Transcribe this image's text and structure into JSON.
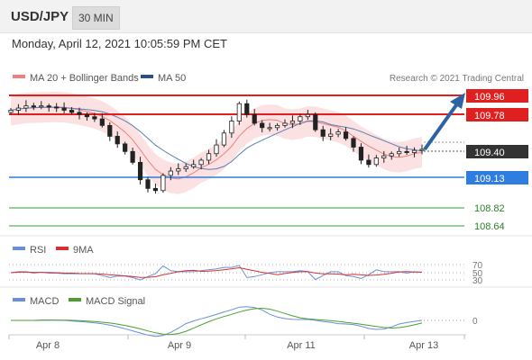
{
  "header": {
    "pair": "USD/JPY",
    "timeframe": "30 MIN"
  },
  "datetime": "Monday, April 12, 2021 10:05:59 PM CET",
  "legend": {
    "bollinger": "MA 20 + Bollinger Bands",
    "ma50": "MA 50",
    "credit": "Research © 2021 Trading Central"
  },
  "levels": {
    "r2": "109.96",
    "r1": "109.78",
    "last": "109.40",
    "pivot": "109.13",
    "s1": "108.82",
    "s2": "108.64"
  },
  "rsi_legend": {
    "rsi": "RSI",
    "ma": "9MA"
  },
  "rsi_levels": [
    "70",
    "50",
    "30"
  ],
  "macd_legend": {
    "macd": "MACD",
    "signal": "MACD Signal"
  },
  "macd_zero": "0",
  "xaxis": [
    "Apr 8",
    "Apr 9",
    "Apr 11",
    "Apr 13"
  ],
  "colors": {
    "resistance": "#e02020",
    "pivot": "#2f7de1",
    "support": "#3a9b3a",
    "last": "#333333",
    "band": "#f7c9c9",
    "ma20": "#f08080",
    "ma50": "#5b7fb5",
    "rsi": "#6a8fd8",
    "rsi_ma": "#d83030",
    "macd": "#6a8fd8",
    "macd_signal": "#4aa02c",
    "candle": "#222222",
    "arrow": "#2b63a5"
  },
  "chart_data": [
    {
      "type": "candlestick",
      "title": "USD/JPY",
      "timeframe": "30 MIN",
      "ylim": [
        108.55,
        110.0
      ],
      "x_ticks": [
        "Apr 8",
        "Apr 9",
        "Apr 11",
        "Apr 13"
      ],
      "close_series": [
        109.76,
        109.78,
        109.8,
        109.79,
        109.8,
        109.79,
        109.78,
        109.76,
        109.74,
        109.72,
        109.7,
        109.68,
        109.62,
        109.52,
        109.45,
        109.38,
        109.28,
        109.12,
        109.04,
        109.02,
        109.16,
        109.2,
        109.22,
        109.24,
        109.26,
        109.3,
        109.36,
        109.44,
        109.55,
        109.66,
        109.82,
        109.72,
        109.64,
        109.6,
        109.6,
        109.62,
        109.64,
        109.66,
        109.7,
        109.72,
        109.58,
        109.52,
        109.54,
        109.56,
        109.5,
        109.42,
        109.3,
        109.26,
        109.32,
        109.34,
        109.36,
        109.38,
        109.37,
        109.39,
        109.4
      ],
      "resistance": [
        109.96,
        109.78
      ],
      "last": 109.4,
      "pivot": 109.13,
      "support": [
        108.82,
        108.64
      ],
      "projection": "up toward 109.96"
    },
    {
      "type": "line",
      "title": "RSI",
      "series": [
        {
          "name": "RSI"
        },
        {
          "name": "9MA"
        }
      ],
      "levels": [
        70,
        50,
        30
      ]
    },
    {
      "type": "line",
      "title": "MACD",
      "series": [
        {
          "name": "MACD"
        },
        {
          "name": "MACD Signal"
        }
      ],
      "levels": [
        0
      ]
    }
  ]
}
